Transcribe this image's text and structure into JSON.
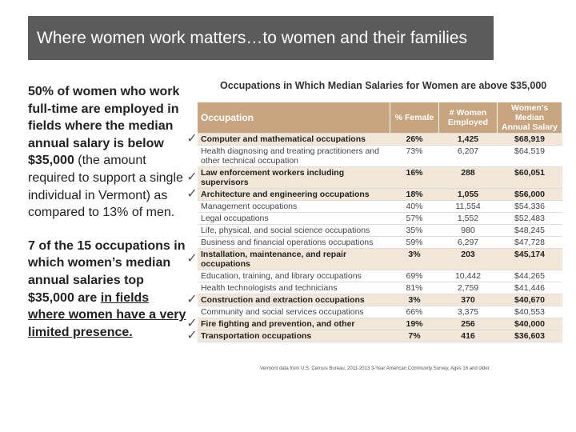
{
  "title": "Where women work matters…to women and their families",
  "left_text": {
    "paragraphs": [
      {
        "bold": "50% of women who work full-time are employed in fields where the median annual salary is below $35,000",
        "normal": " (the amount required to support a single individual in Vermont) as compared to 13% of men."
      },
      {
        "bold": "7 of the 15 occupations in which women’s median annual salaries top $35,000 are ",
        "underlined": "in fields where women have a very limited presence."
      }
    ]
  },
  "table": {
    "title": "Occupations in Which Median Salaries for Women are above $35,000",
    "header": [
      "Occupation",
      "% Female",
      "# Women Employed",
      "Women's Median Annual Salary"
    ],
    "rows": [
      {
        "cells": [
          "Computer and mathematical occupations",
          "26%",
          "1,425",
          "$68,919"
        ],
        "highlight": true
      },
      {
        "cells": [
          "Health diagnosing and treating practitioners and other technical occupation",
          "73%",
          "6,207",
          "$64,519"
        ],
        "highlight": false
      },
      {
        "cells": [
          "Law enforcement workers including supervisors",
          "16%",
          "288",
          "$60,051"
        ],
        "highlight": true
      },
      {
        "cells": [
          "Architecture and engineering occupations",
          "18%",
          "1,055",
          "$56,000"
        ],
        "highlight": true
      },
      {
        "cells": [
          "Management occupations",
          "40%",
          "11,554",
          "$54,336"
        ],
        "highlight": false
      },
      {
        "cells": [
          "Legal occupations",
          "57%",
          "1,552",
          "$52,483"
        ],
        "highlight": false
      },
      {
        "cells": [
          "Life, physical, and social science occupations",
          "35%",
          "980",
          "$48,245"
        ],
        "highlight": false
      },
      {
        "cells": [
          "Business and financial operations occupations",
          "59%",
          "6,297",
          "$47,728"
        ],
        "highlight": false
      },
      {
        "cells": [
          "Installation, maintenance, and repair occupations",
          "3%",
          "203",
          "$45,174"
        ],
        "highlight": true
      },
      {
        "cells": [
          "Education, training, and library occupations",
          "69%",
          "10,442",
          "$44,265"
        ],
        "highlight": false
      },
      {
        "cells": [
          "Health technologists and technicians",
          "81%",
          "2,759",
          "$41,446"
        ],
        "highlight": false
      },
      {
        "cells": [
          "Construction and extraction occupations",
          "3%",
          "370",
          "$40,670"
        ],
        "highlight": true
      },
      {
        "cells": [
          "Community and social services occupations",
          "66%",
          "3,375",
          "$40,553"
        ],
        "highlight": false
      },
      {
        "cells": [
          "Fire fighting and prevention, and other",
          "19%",
          "256",
          "$40,000"
        ],
        "highlight": true
      },
      {
        "cells": [
          "Transportation occupations",
          "7%",
          "416",
          "$36,603"
        ],
        "highlight": true
      }
    ],
    "footnote": "Vermont data from U.S. Census Bureau, 2011-2013 3-Year American Community Survey, Ages 16 and older."
  }
}
